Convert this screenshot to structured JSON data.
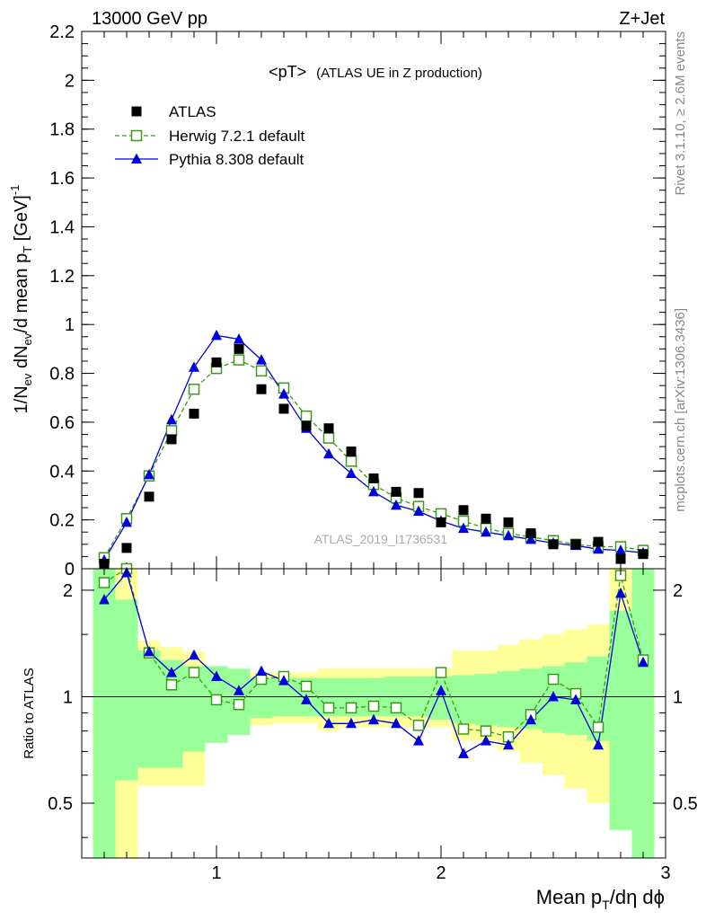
{
  "header": {
    "left": "13000 GeV pp",
    "right": "Z+Jet"
  },
  "side_text": {
    "rivet": "Rivet 3.1.10, ≥ 2.6M events",
    "mcplots": "mcplots.cern.ch [arXiv:1306.3436]"
  },
  "watermark": "ATLAS_2019_I1736531",
  "colors": {
    "atlas": "#000000",
    "herwig": "#3a9a1a",
    "pythia": "#0000dd",
    "band_inner": "#99ff99",
    "band_outer": "#ffff99"
  },
  "chart_data": [
    {
      "type": "scatter",
      "title": "<pT> (ATLAS UE in Z production)",
      "title_main": "<pT>",
      "title_sub": "(ATLAS UE in Z production)",
      "ylabel_parts": [
        "1/N",
        "ev",
        " dN",
        "ev",
        "/d mean p",
        "T",
        " [GeV]",
        "-1"
      ],
      "ylim": [
        0,
        2.2
      ],
      "xlim": [
        0.4,
        3.0
      ],
      "yticks": [
        0,
        0.2,
        0.4,
        0.6,
        0.8,
        1,
        1.2,
        1.4,
        1.6,
        1.8,
        2,
        2.2
      ],
      "ytick_labels": [
        "0",
        "0.2",
        "0.4",
        "0.6",
        "0.8",
        "1",
        "1.2",
        "1.4",
        "1.6",
        "1.8",
        "2",
        "2.2"
      ],
      "legend_position": "top-left",
      "x": [
        0.5,
        0.6,
        0.7,
        0.8,
        0.9,
        1.0,
        1.1,
        1.2,
        1.3,
        1.4,
        1.5,
        1.6,
        1.7,
        1.8,
        1.9,
        2.0,
        2.1,
        2.2,
        2.3,
        2.4,
        2.5,
        2.6,
        2.7,
        2.8,
        2.9
      ],
      "series": [
        {
          "name": "ATLAS",
          "marker": "square-filled",
          "values": [
            0.02,
            0.085,
            0.295,
            0.53,
            0.635,
            0.845,
            0.9,
            0.735,
            0.655,
            0.585,
            0.575,
            0.48,
            0.37,
            0.315,
            0.31,
            0.19,
            0.24,
            0.205,
            0.19,
            0.145,
            0.1,
            0.1,
            0.11,
            0.04,
            0.06
          ]
        },
        {
          "name": "Herwig 7.2.1 default",
          "marker": "square-open",
          "values": [
            0.045,
            0.205,
            0.38,
            0.565,
            0.735,
            0.82,
            0.855,
            0.81,
            0.74,
            0.625,
            0.535,
            0.44,
            0.345,
            0.29,
            0.255,
            0.225,
            0.195,
            0.165,
            0.145,
            0.13,
            0.115,
            0.1,
            0.09,
            0.09,
            0.075
          ]
        },
        {
          "name": "Pythia 8.308 default",
          "marker": "triangle-filled",
          "values": [
            0.035,
            0.19,
            0.385,
            0.61,
            0.825,
            0.955,
            0.94,
            0.855,
            0.715,
            0.575,
            0.47,
            0.39,
            0.315,
            0.26,
            0.235,
            0.195,
            0.165,
            0.15,
            0.135,
            0.12,
            0.105,
            0.095,
            0.08,
            0.075,
            0.065
          ]
        }
      ]
    },
    {
      "type": "line",
      "ylabel": "Ratio to ATLAS",
      "xlabel_parts": [
        "Mean p",
        "T",
        "/dη dϕ"
      ],
      "ylim": [
        0.35,
        2.3
      ],
      "xlim": [
        0.4,
        3.0
      ],
      "log_y": true,
      "reference_line": 1,
      "yticks": [
        0.5,
        1,
        2
      ],
      "ytick_labels": [
        "0.5",
        "1",
        "2"
      ],
      "xticks": [
        1,
        2,
        3
      ],
      "xtick_labels": [
        "1",
        "2",
        "3"
      ],
      "x": [
        0.5,
        0.6,
        0.7,
        0.8,
        0.9,
        1.0,
        1.1,
        1.2,
        1.3,
        1.4,
        1.5,
        1.6,
        1.7,
        1.8,
        1.9,
        2.0,
        2.1,
        2.2,
        2.3,
        2.4,
        2.5,
        2.6,
        2.7,
        2.8,
        2.9
      ],
      "bins": [
        0.45,
        0.55,
        0.65,
        0.75,
        0.85,
        0.95,
        1.05,
        1.15,
        1.25,
        1.35,
        1.45,
        1.55,
        1.65,
        1.75,
        1.85,
        1.95,
        2.05,
        2.15,
        2.25,
        2.35,
        2.45,
        2.55,
        2.65,
        2.75,
        2.85,
        2.95
      ],
      "band_inner": [
        [
          0.3,
          2.3
        ],
        [
          0.58,
          1.88
        ],
        [
          0.63,
          1.35
        ],
        [
          0.63,
          1.27
        ],
        [
          0.7,
          1.22
        ],
        [
          0.74,
          1.22
        ],
        [
          0.78,
          1.2
        ],
        [
          0.87,
          1.13
        ],
        [
          0.88,
          1.13
        ],
        [
          0.88,
          1.13
        ],
        [
          0.88,
          1.13
        ],
        [
          0.88,
          1.13
        ],
        [
          0.88,
          1.13
        ],
        [
          0.88,
          1.14
        ],
        [
          0.88,
          1.14
        ],
        [
          0.86,
          1.14
        ],
        [
          0.84,
          1.15
        ],
        [
          0.83,
          1.16
        ],
        [
          0.82,
          1.18
        ],
        [
          0.81,
          1.2
        ],
        [
          0.79,
          1.22
        ],
        [
          0.78,
          1.25
        ],
        [
          0.75,
          1.3
        ],
        [
          0.42,
          1.75
        ],
        [
          0.3,
          2.3
        ]
      ],
      "band_outer": [
        [
          0.3,
          2.3
        ],
        [
          0.3,
          2.3
        ],
        [
          0.56,
          1.44
        ],
        [
          0.56,
          1.38
        ],
        [
          0.56,
          1.34
        ],
        [
          0.79,
          1.22
        ],
        [
          0.83,
          1.17
        ],
        [
          0.83,
          1.17
        ],
        [
          0.84,
          1.17
        ],
        [
          0.84,
          1.17
        ],
        [
          0.8,
          1.2
        ],
        [
          0.82,
          1.2
        ],
        [
          0.82,
          1.2
        ],
        [
          0.82,
          1.2
        ],
        [
          0.82,
          1.2
        ],
        [
          0.82,
          1.2
        ],
        [
          0.75,
          1.35
        ],
        [
          0.75,
          1.35
        ],
        [
          0.7,
          1.4
        ],
        [
          0.65,
          1.45
        ],
        [
          0.6,
          1.5
        ],
        [
          0.55,
          1.55
        ],
        [
          0.5,
          1.6
        ],
        [
          0.66,
          2.3
        ],
        [
          0.3,
          2.3
        ]
      ],
      "series": [
        {
          "name": "Herwig 7.2.1 default",
          "values": [
            2.1,
            2.43,
            1.33,
            1.08,
            1.17,
            0.98,
            0.95,
            1.12,
            1.14,
            1.07,
            0.93,
            0.93,
            0.94,
            0.93,
            0.83,
            1.17,
            0.81,
            0.8,
            0.77,
            0.89,
            1.12,
            1.02,
            0.82,
            2.2,
            1.27
          ]
        },
        {
          "name": "Pythia 8.308 default",
          "values": [
            1.88,
            2.24,
            1.34,
            1.17,
            1.31,
            1.14,
            1.04,
            1.18,
            1.11,
            0.98,
            0.84,
            0.84,
            0.86,
            0.84,
            0.75,
            1.04,
            0.69,
            0.75,
            0.73,
            0.86,
            1.0,
            0.98,
            0.73,
            1.96,
            1.25
          ]
        }
      ]
    }
  ]
}
